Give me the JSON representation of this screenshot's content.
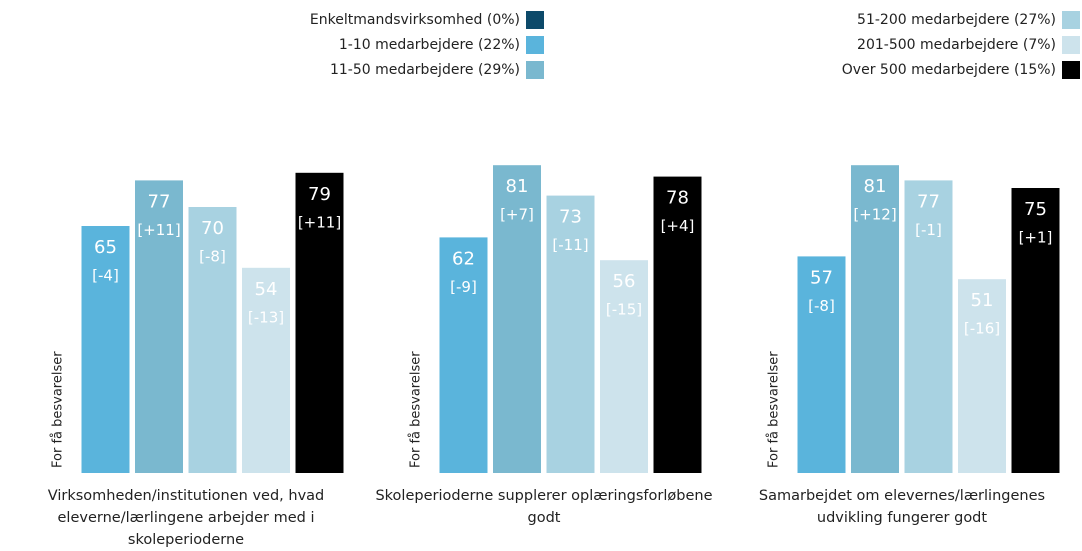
{
  "chart_data": {
    "type": "bar",
    "categories": [
      "Virksomheden/institutionen ved, hvad eleverne/lærlingene arbejder med i skoleperioderne",
      "Skoleperioderne supplerer oplæringsforløbene godt",
      "Samarbejdet om elevernes/lærlingenes udvikling fungerer godt"
    ],
    "annotation": "For få besvarelser",
    "ylim": [
      0,
      100
    ],
    "series": [
      {
        "name": "Enkeltmandsvirksomhed (0%)",
        "color": "#0d4a6a",
        "values": [
          null,
          null,
          null
        ]
      },
      {
        "name": "1-10 medarbejdere (22%)",
        "color": "#5ab4dc",
        "values": [
          65,
          62,
          57
        ],
        "changes": [
          -4,
          -9,
          -8
        ],
        "change_labels": [
          "[-4]",
          "[-9]",
          "[-8]"
        ]
      },
      {
        "name": "11-50 medarbejdere (29%)",
        "color": "#7ab8cf",
        "values": [
          77,
          81,
          81
        ],
        "changes": [
          11,
          7,
          12
        ],
        "change_labels": [
          "[+11]",
          "[+7]",
          "[+12]"
        ]
      },
      {
        "name": "51-200 medarbejdere (27%)",
        "color": "#a8d2e1",
        "values": [
          70,
          73,
          77
        ],
        "changes": [
          -8,
          -11,
          -1
        ],
        "change_labels": [
          "[-8]",
          "[-11]",
          "[-1]"
        ]
      },
      {
        "name": "201-500 medarbejdere (7%)",
        "color": "#cde3ec",
        "values": [
          54,
          56,
          51
        ],
        "changes": [
          -13,
          -15,
          -16
        ],
        "change_labels": [
          "[-13]",
          "[-15]",
          "[-16]"
        ]
      },
      {
        "name": "Over 500 medarbejdere (15%)",
        "color": "#000000",
        "values": [
          79,
          78,
          75
        ],
        "changes": [
          11,
          4,
          1
        ],
        "change_labels": [
          "[+11]",
          "[+4]",
          "[+1]"
        ]
      }
    ]
  }
}
